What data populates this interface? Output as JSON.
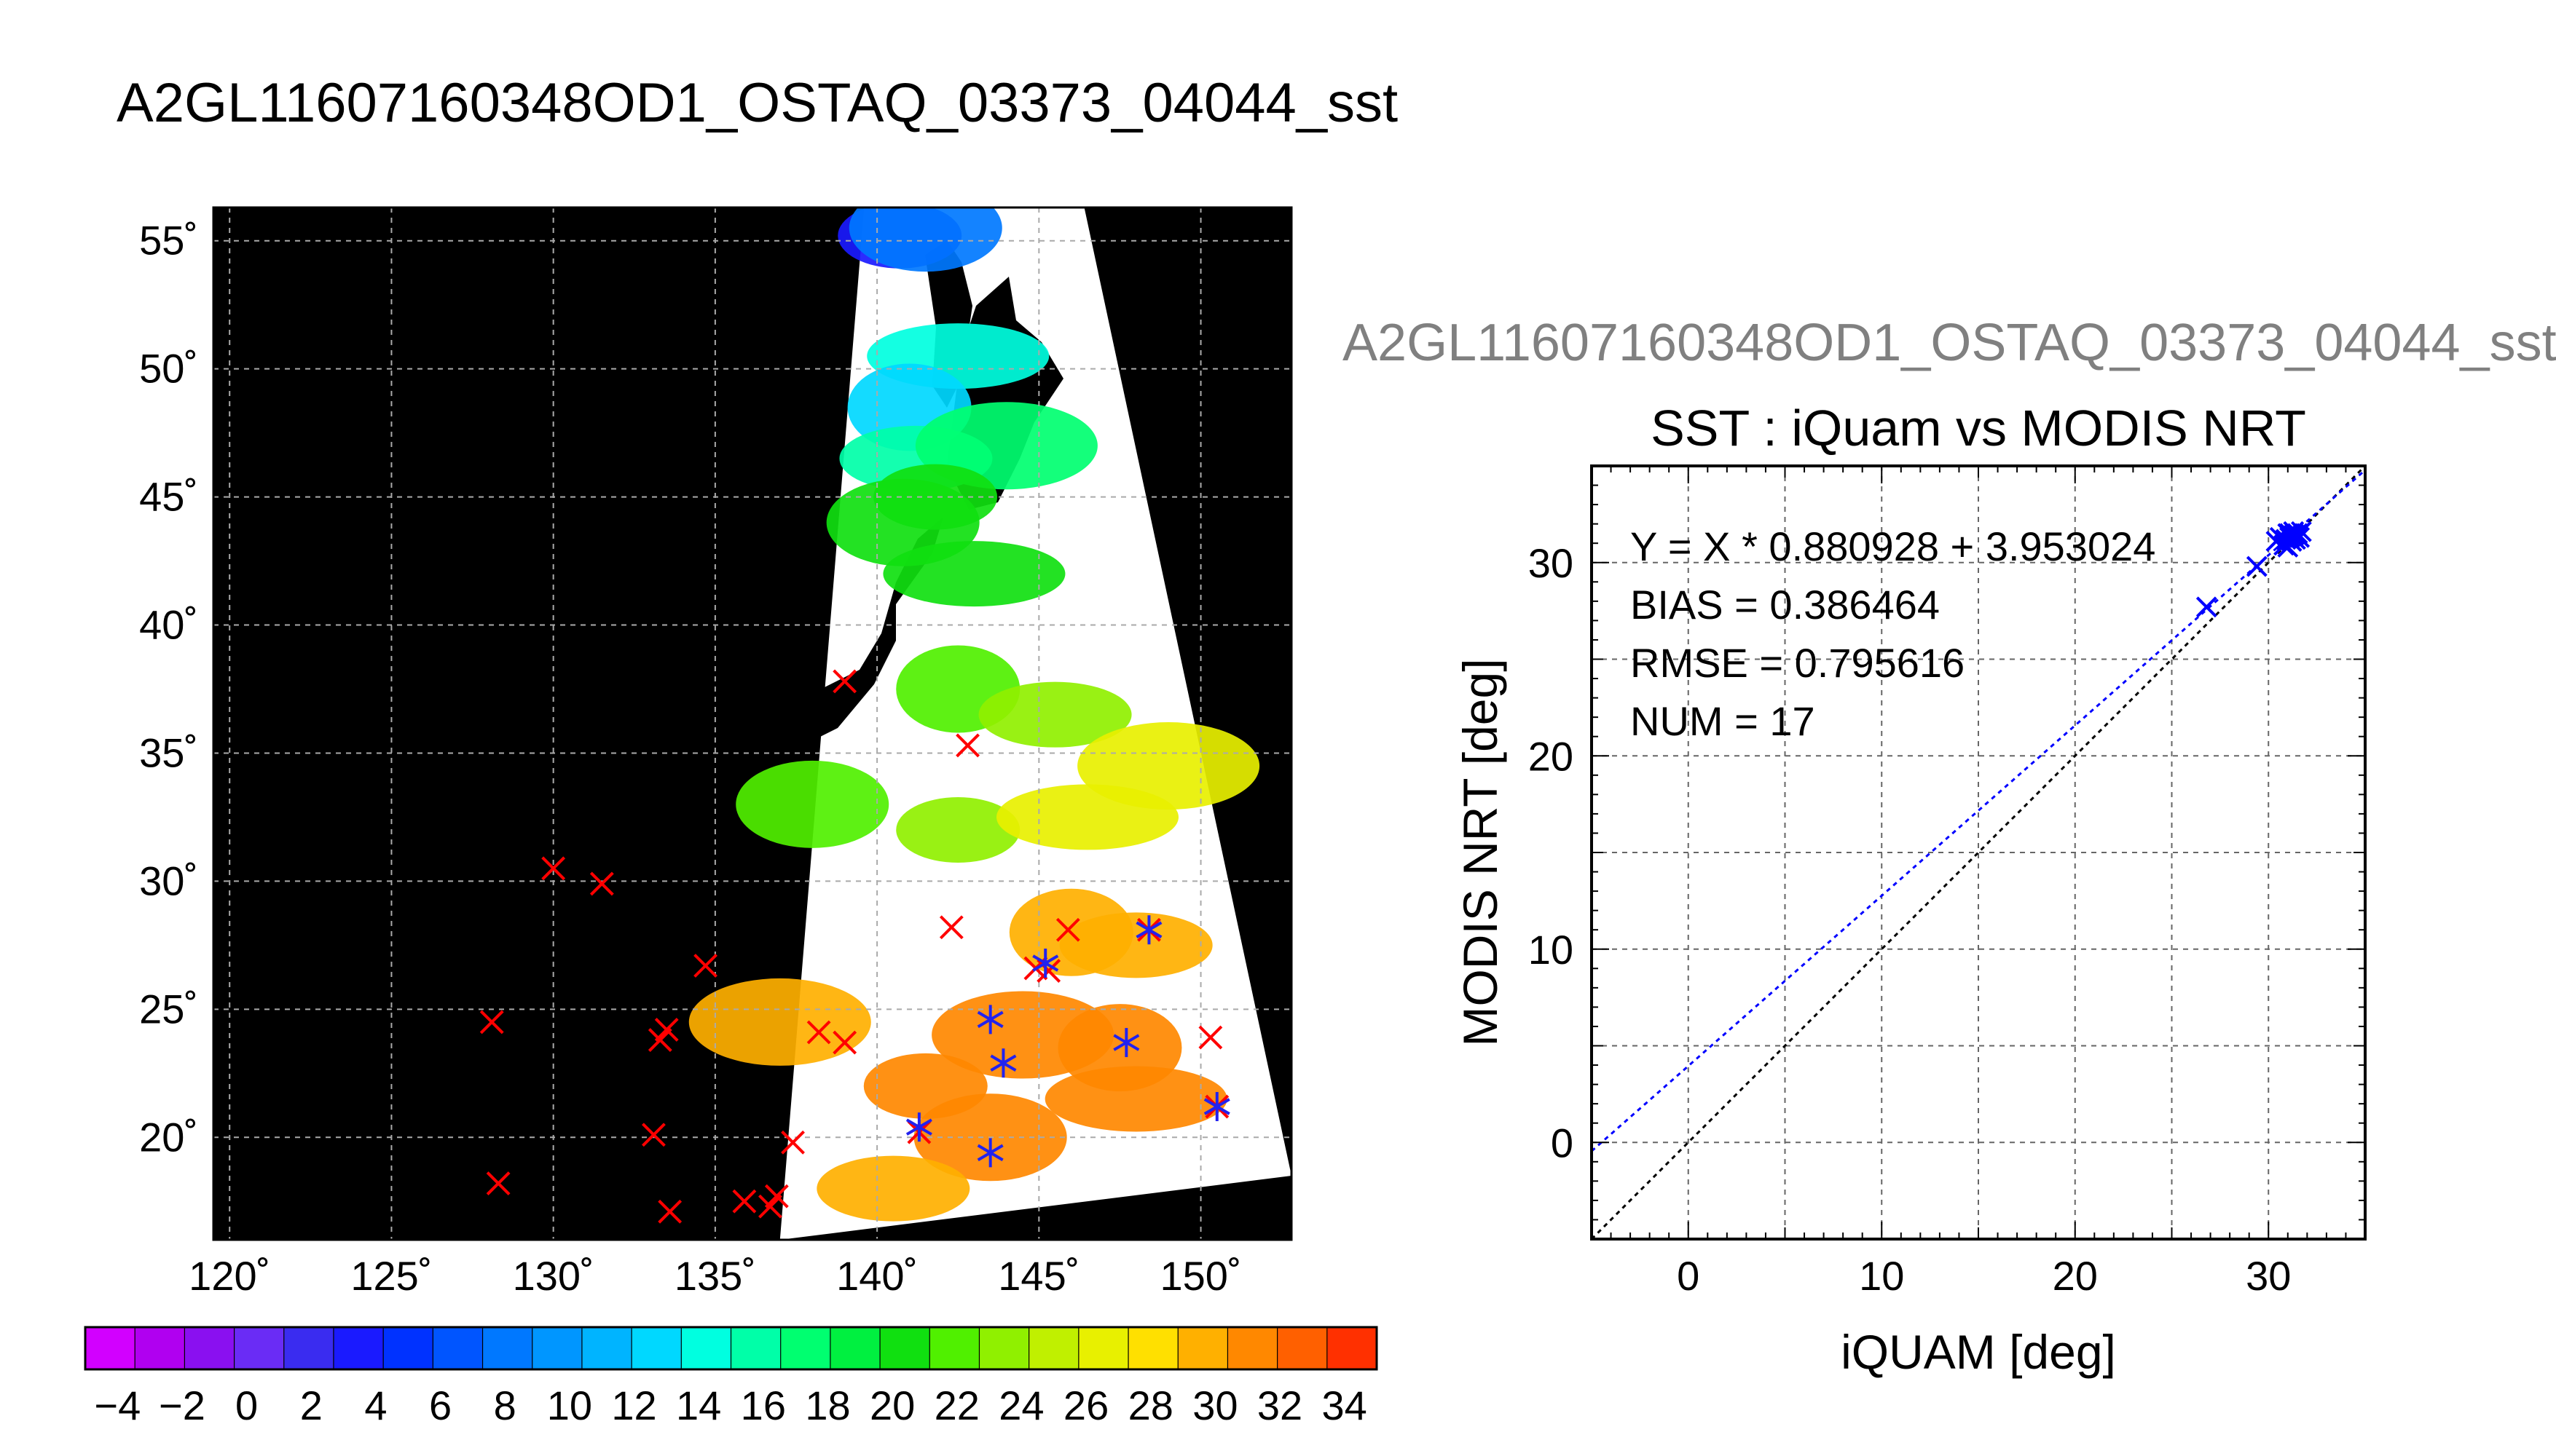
{
  "chart_data": [
    {
      "type": "map",
      "title": "A2GL11607160348OD1_OSTAQ_03373_04044_sst",
      "x_ticks": [
        "120˚",
        "125˚",
        "130˚",
        "135˚",
        "140˚",
        "145˚",
        "150˚"
      ],
      "y_ticks": [
        "55˚",
        "50˚",
        "45˚",
        "40˚",
        "35˚",
        "30˚",
        "25˚",
        "20˚"
      ],
      "xlim": [
        119.5,
        152.8
      ],
      "ylim": [
        16.0,
        56.3
      ],
      "grid": true,
      "grid_lon": [
        120,
        125,
        130,
        135,
        140,
        145,
        150
      ],
      "grid_lat": [
        55,
        50,
        45,
        40,
        35,
        30,
        25,
        20
      ],
      "colorbar": {
        "range": [
          -5,
          35
        ],
        "tick_labels": [
          "−4",
          "−2",
          "0",
          "2",
          "4",
          "6",
          "8",
          "10",
          "12",
          "14",
          "16",
          "18",
          "20",
          "22",
          "24",
          "26",
          "28",
          "30",
          "32",
          "34"
        ],
        "colors": [
          "#d200ff",
          "#b000f0",
          "#8a10f0",
          "#6a2cf5",
          "#3a2cf0",
          "#1a1aff",
          "#0032ff",
          "#0055ff",
          "#0078ff",
          "#0096ff",
          "#00b4ff",
          "#00d8ff",
          "#00ffe0",
          "#00ffa8",
          "#00ff70",
          "#00f040",
          "#10e010",
          "#50f000",
          "#90f000",
          "#c0f000",
          "#e8f000",
          "#ffe000",
          "#ffb000",
          "#ff8800",
          "#ff6000",
          "#ff3000"
        ]
      },
      "swath_corners_lonlat": [
        [
          139.6,
          56.3
        ],
        [
          146.4,
          56.3
        ],
        [
          152.8,
          18.5
        ],
        [
          137.0,
          16.0
        ]
      ],
      "land_color": "#000000",
      "no_data_color": "#ffffff",
      "sst_patches": [
        {
          "lon": 140.7,
          "lat": 55.2,
          "value": 4
        },
        {
          "lon": 141.5,
          "lat": 55.5,
          "value": 8
        },
        {
          "lon": 142.5,
          "lat": 50.5,
          "value": 14
        },
        {
          "lon": 141.0,
          "lat": 48.5,
          "value": 12
        },
        {
          "lon": 141.2,
          "lat": 46.5,
          "value": 16
        },
        {
          "lon": 144.0,
          "lat": 47.0,
          "value": 18
        },
        {
          "lon": 141.8,
          "lat": 45.0,
          "value": 20
        },
        {
          "lon": 140.8,
          "lat": 44.0,
          "value": 20
        },
        {
          "lon": 143.0,
          "lat": 42.0,
          "value": 20
        },
        {
          "lon": 142.5,
          "lat": 37.5,
          "value": 22
        },
        {
          "lon": 145.5,
          "lat": 36.5,
          "value": 24
        },
        {
          "lon": 149.0,
          "lat": 34.5,
          "value": 26
        },
        {
          "lon": 142.5,
          "lat": 32.0,
          "value": 24
        },
        {
          "lon": 138.0,
          "lat": 33.0,
          "value": 22
        },
        {
          "lon": 146.5,
          "lat": 32.5,
          "value": 26
        },
        {
          "lon": 146.0,
          "lat": 28.0,
          "value": 29
        },
        {
          "lon": 148.0,
          "lat": 27.5,
          "value": 30
        },
        {
          "lon": 144.5,
          "lat": 24.0,
          "value": 31
        },
        {
          "lon": 141.5,
          "lat": 22.0,
          "value": 30.5
        },
        {
          "lon": 143.5,
          "lat": 20.0,
          "value": 31
        },
        {
          "lon": 148.0,
          "lat": 21.5,
          "value": 31
        },
        {
          "lon": 147.5,
          "lat": 23.5,
          "value": 30.5
        },
        {
          "lon": 140.5,
          "lat": 18.0,
          "value": 30
        },
        {
          "lon": 137.0,
          "lat": 24.5,
          "value": 29
        }
      ],
      "red_x_lonlat": [
        [
          139.0,
          37.8
        ],
        [
          142.8,
          35.3
        ],
        [
          130.0,
          30.5
        ],
        [
          131.5,
          29.9
        ],
        [
          134.7,
          26.7
        ],
        [
          128.1,
          24.5
        ],
        [
          133.3,
          23.8
        ],
        [
          133.5,
          24.2
        ],
        [
          138.2,
          24.1
        ],
        [
          139.0,
          23.7
        ],
        [
          141.3,
          20.2
        ],
        [
          142.3,
          28.2
        ],
        [
          144.9,
          26.6
        ],
        [
          145.3,
          26.5
        ],
        [
          145.9,
          28.1
        ],
        [
          148.4,
          28.1
        ],
        [
          150.3,
          23.9
        ],
        [
          150.5,
          21.2
        ],
        [
          133.1,
          20.1
        ],
        [
          137.4,
          19.8
        ],
        [
          128.3,
          18.2
        ],
        [
          133.6,
          17.1
        ],
        [
          135.9,
          17.5
        ],
        [
          136.7,
          17.3
        ],
        [
          136.9,
          17.7
        ]
      ],
      "blue_star_lonlat": [
        [
          143.5,
          24.6
        ],
        [
          143.9,
          22.9
        ],
        [
          141.3,
          20.4
        ],
        [
          143.5,
          19.4
        ],
        [
          145.2,
          26.8
        ],
        [
          148.4,
          28.1
        ],
        [
          147.7,
          23.7
        ],
        [
          150.5,
          21.2
        ]
      ]
    },
    {
      "type": "scatter",
      "subtitle": "A2GL11607160348OD1_OSTAQ_03373_04044_sst",
      "title": "SST : iQuam vs MODIS NRT",
      "xlabel": "iQUAM [deg]",
      "ylabel": "MODIS NRT [deg]",
      "xlim": [
        -5,
        35
      ],
      "ylim": [
        -5,
        35
      ],
      "x_ticks": [
        0,
        10,
        20,
        30
      ],
      "y_ticks": [
        0,
        10,
        20,
        30
      ],
      "grid": true,
      "grid_step": 5,
      "stats": [
        "Y = X * 0.880928 + 3.953024",
        "BIAS = 0.386464",
        "RMSE = 0.795616",
        "NUM = 17"
      ],
      "fit": {
        "slope": 0.880928,
        "intercept": 3.953024,
        "color": "#0000ff"
      },
      "identity_line": {
        "color": "#000000"
      },
      "points": {
        "color": "#0000ff",
        "x": [
          26.8,
          29.4,
          30.4,
          30.6,
          30.8,
          30.9,
          31.0,
          31.0,
          31.1,
          31.1,
          31.2,
          31.3,
          31.3,
          31.4,
          31.5,
          31.6,
          31.7
        ],
        "y": [
          27.7,
          29.8,
          31.1,
          31.3,
          30.9,
          31.2,
          31.5,
          30.8,
          31.3,
          31.5,
          31.1,
          31.6,
          31.4,
          31.2,
          31.5,
          31.3,
          31.6
        ]
      }
    }
  ]
}
